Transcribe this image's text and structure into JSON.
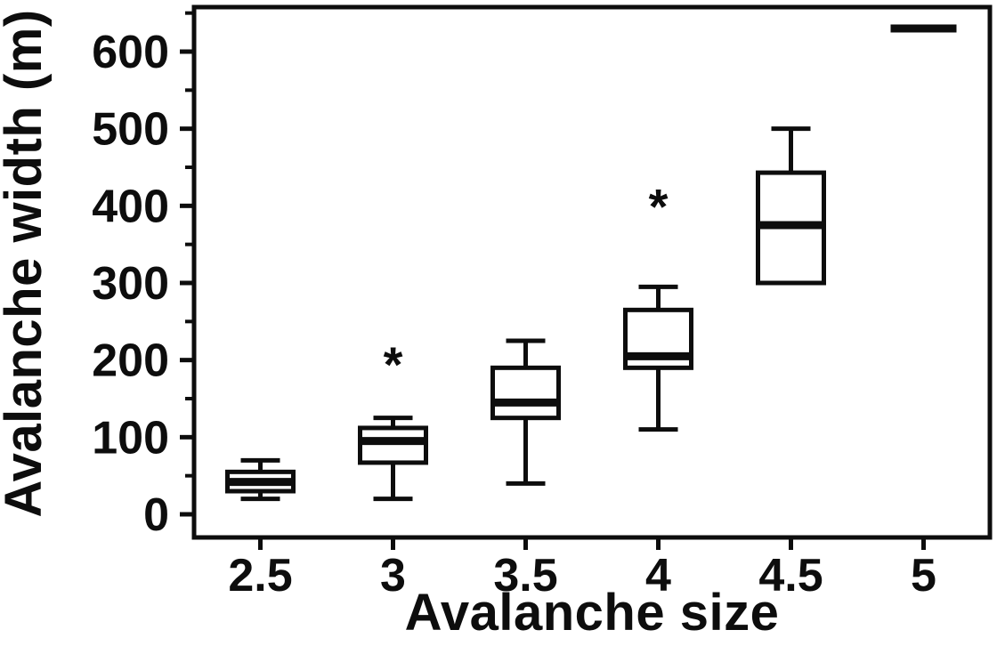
{
  "chart_data": {
    "type": "boxplot",
    "title": "",
    "xlabel": "Avalanche size",
    "ylabel": "Avalanche width (m)",
    "categories": [
      "2.5",
      "3",
      "3.5",
      "4",
      "4.5",
      "5"
    ],
    "ylim": [
      0,
      660
    ],
    "yticks": [
      0,
      100,
      200,
      300,
      400,
      500,
      600
    ],
    "yticks_minor": [
      50,
      150,
      250,
      350,
      450,
      550,
      650
    ],
    "grid": false,
    "legend": "none",
    "ink_color": "#0d0d0d",
    "series": [
      {
        "category": "2.5",
        "whisker_low": 20,
        "q1": 30,
        "median": 42,
        "q3": 55,
        "whisker_high": 70,
        "outliers": []
      },
      {
        "category": "3",
        "whisker_low": 20,
        "q1": 67,
        "median": 95,
        "q3": 112,
        "whisker_high": 125,
        "outliers": [
          195
        ]
      },
      {
        "category": "3.5",
        "whisker_low": 40,
        "q1": 125,
        "median": 145,
        "q3": 190,
        "whisker_high": 225,
        "outliers": []
      },
      {
        "category": "4",
        "whisker_low": 110,
        "q1": 190,
        "median": 205,
        "q3": 265,
        "whisker_high": 295,
        "outliers": [
          400
        ]
      },
      {
        "category": "4.5",
        "whisker_low": 300,
        "q1": 300,
        "median": 375,
        "q3": 443,
        "whisker_high": 500,
        "outliers": []
      },
      {
        "category": "5",
        "whisker_low": 630,
        "q1": 630,
        "median": 630,
        "q3": 630,
        "whisker_high": 630,
        "outliers": []
      }
    ]
  }
}
